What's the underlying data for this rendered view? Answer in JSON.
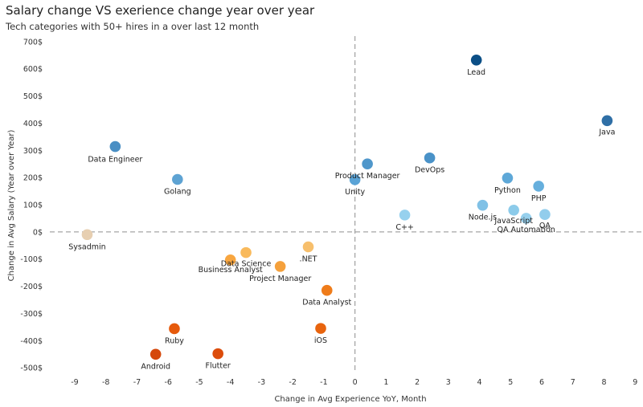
{
  "title": "Salary change VS exerience change year over year",
  "subtitle": "Tech categories with 50+ hires in a over last 12 month",
  "chart_data": {
    "type": "scatter",
    "xlabel": "Change in Avg Experience YoY, Month",
    "ylabel": "Change in Avg Salary (Year over Year)",
    "xlim": [
      -9.8,
      9.2
    ],
    "ylim": [
      -520,
      720
    ],
    "x_ticks": [
      "-9",
      "-8",
      "-7",
      "-6",
      "-5",
      "-4",
      "-3",
      "-2",
      "-1",
      "0",
      "1",
      "2",
      "3",
      "4",
      "5",
      "6",
      "7",
      "8",
      "9"
    ],
    "x_tick_values": [
      -9,
      -8,
      -7,
      -6,
      -5,
      -4,
      -3,
      -2,
      -1,
      0,
      1,
      2,
      3,
      4,
      5,
      6,
      7,
      8,
      9
    ],
    "y_ticks": [
      "700$",
      "600$",
      "500$",
      "400$",
      "300$",
      "200$",
      "100$",
      "0$",
      "-100$",
      "-200$",
      "-300$",
      "-400$",
      "-500$"
    ],
    "y_tick_values": [
      700,
      600,
      500,
      400,
      300,
      200,
      100,
      0,
      -100,
      -200,
      -300,
      -400,
      -500
    ],
    "reference_lines": "dashed lines at x=0 and y=0",
    "points": [
      {
        "label": "Lead",
        "x": 3.9,
        "y": 632,
        "color": "#0b4f86"
      },
      {
        "label": "Java",
        "x": 8.1,
        "y": 409,
        "color": "#2f6fa6"
      },
      {
        "label": "Data Engineer",
        "x": -7.7,
        "y": 314,
        "color": "#4a8fc4"
      },
      {
        "label": "Golang",
        "x": -5.7,
        "y": 193,
        "color": "#5ea3d3"
      },
      {
        "label": "Product Manager",
        "x": 0.4,
        "y": 250,
        "color": "#4f97cb"
      },
      {
        "label": "DevOps",
        "x": 2.4,
        "y": 272,
        "color": "#4a92c8"
      },
      {
        "label": "Unity",
        "x": 0.0,
        "y": 192,
        "color": "#5aa3d6"
      },
      {
        "label": "Python",
        "x": 4.9,
        "y": 198,
        "color": "#5ea8d8"
      },
      {
        "label": "PHP",
        "x": 5.9,
        "y": 168,
        "color": "#66afdd"
      },
      {
        "label": "Node.js",
        "x": 4.1,
        "y": 98,
        "color": "#80c1e6"
      },
      {
        "label": "JavaScript",
        "x": 5.1,
        "y": 80,
        "color": "#8ccbea"
      },
      {
        "label": "QA Automation",
        "x": 5.5,
        "y": 50,
        "color": "#97d0ed"
      },
      {
        "label": "QA",
        "x": 6.1,
        "y": 64,
        "color": "#92cdec"
      },
      {
        "label": "C++",
        "x": 1.6,
        "y": 62,
        "color": "#97d1ee"
      },
      {
        "label": "Sysadmin",
        "x": -8.6,
        "y": -10,
        "color": "#e7cfb1"
      },
      {
        "label": ".NET",
        "x": -1.5,
        "y": -55,
        "color": "#f7bf6c"
      },
      {
        "label": "Data Science",
        "x": -3.5,
        "y": -76,
        "color": "#f9ba5c"
      },
      {
        "label": "Business Analyst",
        "x": -4.0,
        "y": -103,
        "color": "#f8a640"
      },
      {
        "label": "Project Manager",
        "x": -2.4,
        "y": -127,
        "color": "#f5a13c"
      },
      {
        "label": "Data Analyst",
        "x": -0.9,
        "y": -215,
        "color": "#ef7c1a"
      },
      {
        "label": "iOS",
        "x": -1.1,
        "y": -355,
        "color": "#e8640e"
      },
      {
        "label": "Ruby",
        "x": -5.8,
        "y": -356,
        "color": "#e65a0c"
      },
      {
        "label": "Android",
        "x": -6.4,
        "y": -450,
        "color": "#d5480b"
      },
      {
        "label": "Flutter",
        "x": -4.4,
        "y": -448,
        "color": "#dc4c0b"
      }
    ]
  }
}
